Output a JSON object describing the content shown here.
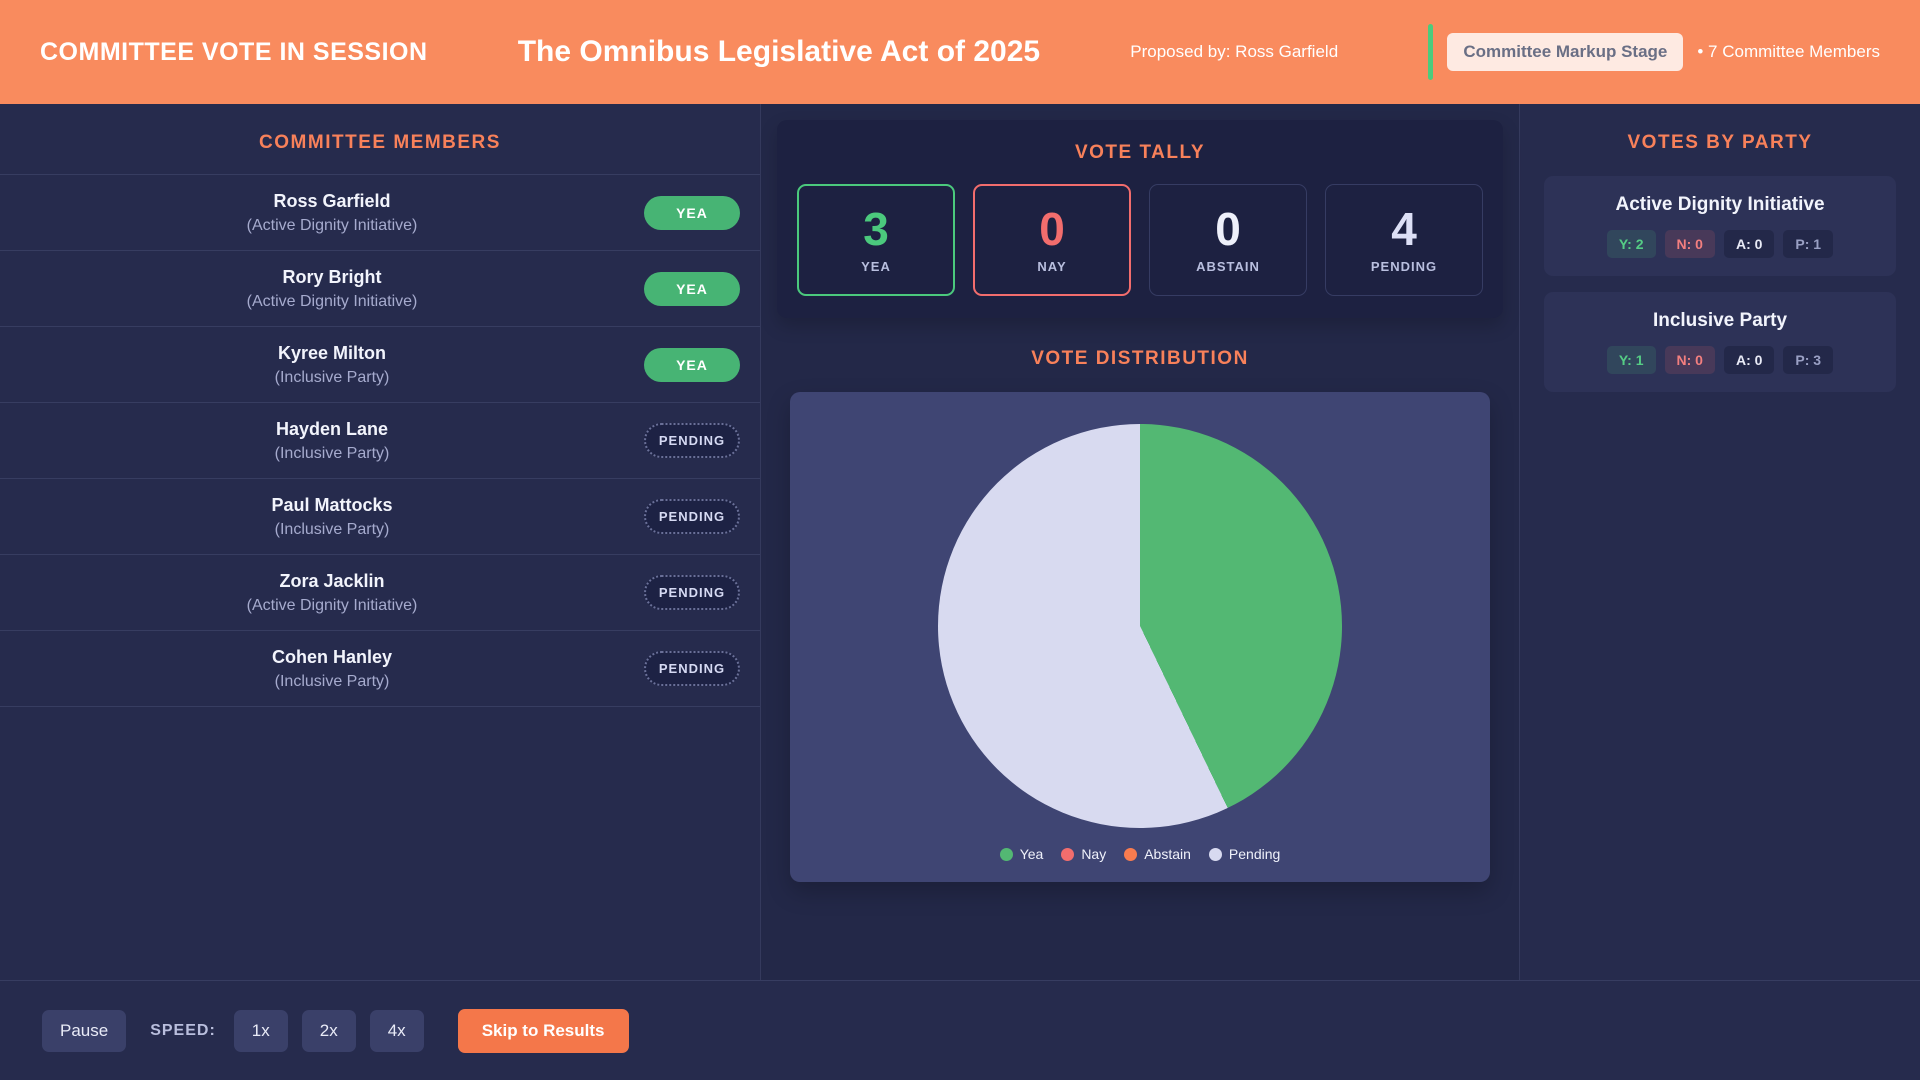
{
  "colors": {
    "header_bg": "#f98b5e",
    "accent_orange": "#f8815a",
    "yea_green": "#4bc97d",
    "nay_red": "#f26d6d",
    "abstain_orange": "#f97c4f",
    "pending_lavender": "#d8daf0",
    "background_navy": "#262b4d"
  },
  "header": {
    "session_label": "COMMITTEE VOTE IN SESSION",
    "bill_title": "The Omnibus Legislative Act of 2025",
    "proposed_by": "Proposed by: Ross Garfield",
    "stage_badge": "Committee Markup Stage",
    "members_count": "• 7 Committee Members"
  },
  "members_panel": {
    "title": "COMMITTEE MEMBERS",
    "members": [
      {
        "name": "Ross Garfield",
        "party": "(Active Dignity Initiative)",
        "vote": "YEA",
        "status": "yea"
      },
      {
        "name": "Rory Bright",
        "party": "(Active Dignity Initiative)",
        "vote": "YEA",
        "status": "yea"
      },
      {
        "name": "Kyree Milton",
        "party": "(Inclusive Party)",
        "vote": "YEA",
        "status": "yea"
      },
      {
        "name": "Hayden Lane",
        "party": "(Inclusive Party)",
        "vote": "PENDING",
        "status": "pending"
      },
      {
        "name": "Paul Mattocks",
        "party": "(Inclusive Party)",
        "vote": "PENDING",
        "status": "pending"
      },
      {
        "name": "Zora Jacklin",
        "party": "(Active Dignity Initiative)",
        "vote": "PENDING",
        "status": "pending"
      },
      {
        "name": "Cohen Hanley",
        "party": "(Inclusive Party)",
        "vote": "PENDING",
        "status": "pending"
      }
    ]
  },
  "tally": {
    "title": "VOTE TALLY",
    "items": [
      {
        "value": "3",
        "label": "YEA"
      },
      {
        "value": "0",
        "label": "NAY"
      },
      {
        "value": "0",
        "label": "ABSTAIN"
      },
      {
        "value": "4",
        "label": "PENDING"
      }
    ]
  },
  "distribution": {
    "title": "VOTE DISTRIBUTION"
  },
  "chart_data": {
    "type": "pie",
    "title": "Vote Distribution",
    "categories": [
      "Yea",
      "Nay",
      "Abstain",
      "Pending"
    ],
    "values": [
      3,
      0,
      0,
      4
    ],
    "colors": [
      "#53b873",
      "#f26d6d",
      "#f97c4f",
      "#d8daf0"
    ],
    "legend_position": "bottom"
  },
  "party_panel": {
    "title": "VOTES BY PARTY",
    "parties": [
      {
        "name": "Active Dignity Initiative",
        "yea": "Y: 2",
        "nay": "N: 0",
        "abstain": "A: 0",
        "pending": "P: 1"
      },
      {
        "name": "Inclusive Party",
        "yea": "Y: 1",
        "nay": "N: 0",
        "abstain": "A: 0",
        "pending": "P: 3"
      }
    ]
  },
  "footer": {
    "pause_label": "Pause",
    "speed_label": "SPEED:",
    "speeds": [
      "1x",
      "2x",
      "4x"
    ],
    "skip_label": "Skip to Results"
  }
}
